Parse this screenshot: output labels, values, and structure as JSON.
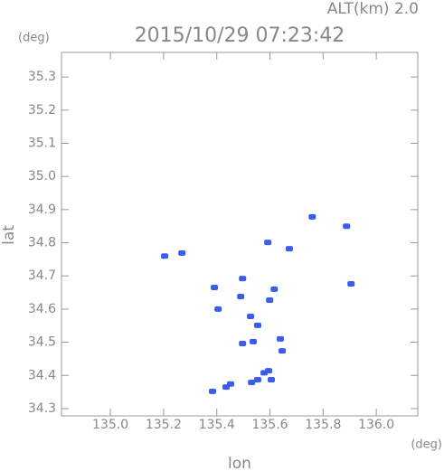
{
  "chart_data": {
    "type": "scatter",
    "title": "2015/10/29 07:23:42",
    "subtitle": "ALT(km) 2.0",
    "x_label": "lon",
    "y_label": "lat",
    "x_unit": "(deg)",
    "y_unit": "(deg)",
    "color": "#3a5cf0",
    "x": [
      135.204,
      135.269,
      135.592,
      135.759,
      135.888,
      135.673,
      135.391,
      135.49,
      135.497,
      135.616,
      135.599,
      135.905,
      135.405,
      135.527,
      135.554,
      135.497,
      135.537,
      135.639,
      135.646,
      135.595,
      135.605,
      135.531,
      135.435,
      135.384,
      135.452,
      135.554,
      135.578
    ],
    "values": [
      34.76,
      34.769,
      34.801,
      34.878,
      34.85,
      34.782,
      34.665,
      34.638,
      34.692,
      34.66,
      34.627,
      34.676,
      34.6,
      34.578,
      34.551,
      34.496,
      34.502,
      34.51,
      34.474,
      34.414,
      34.387,
      34.379,
      34.365,
      34.352,
      34.374,
      34.387,
      34.408
    ],
    "xlim": [
      134.816,
      136.156
    ],
    "ylim": [
      34.278,
      35.374
    ],
    "xticks": [
      {
        "value": 135.0,
        "label": "135.0"
      },
      135.2,
      135.4,
      135.6,
      135.8,
      {
        "value": 136.0,
        "label": "136.0"
      }
    ],
    "yticks": [
      34.3,
      34.4,
      34.5,
      34.6,
      34.7,
      34.8,
      34.9,
      {
        "value": 35.0,
        "label": "35.0"
      },
      35.1,
      35.2,
      35.3
    ],
    "grid": false
  }
}
